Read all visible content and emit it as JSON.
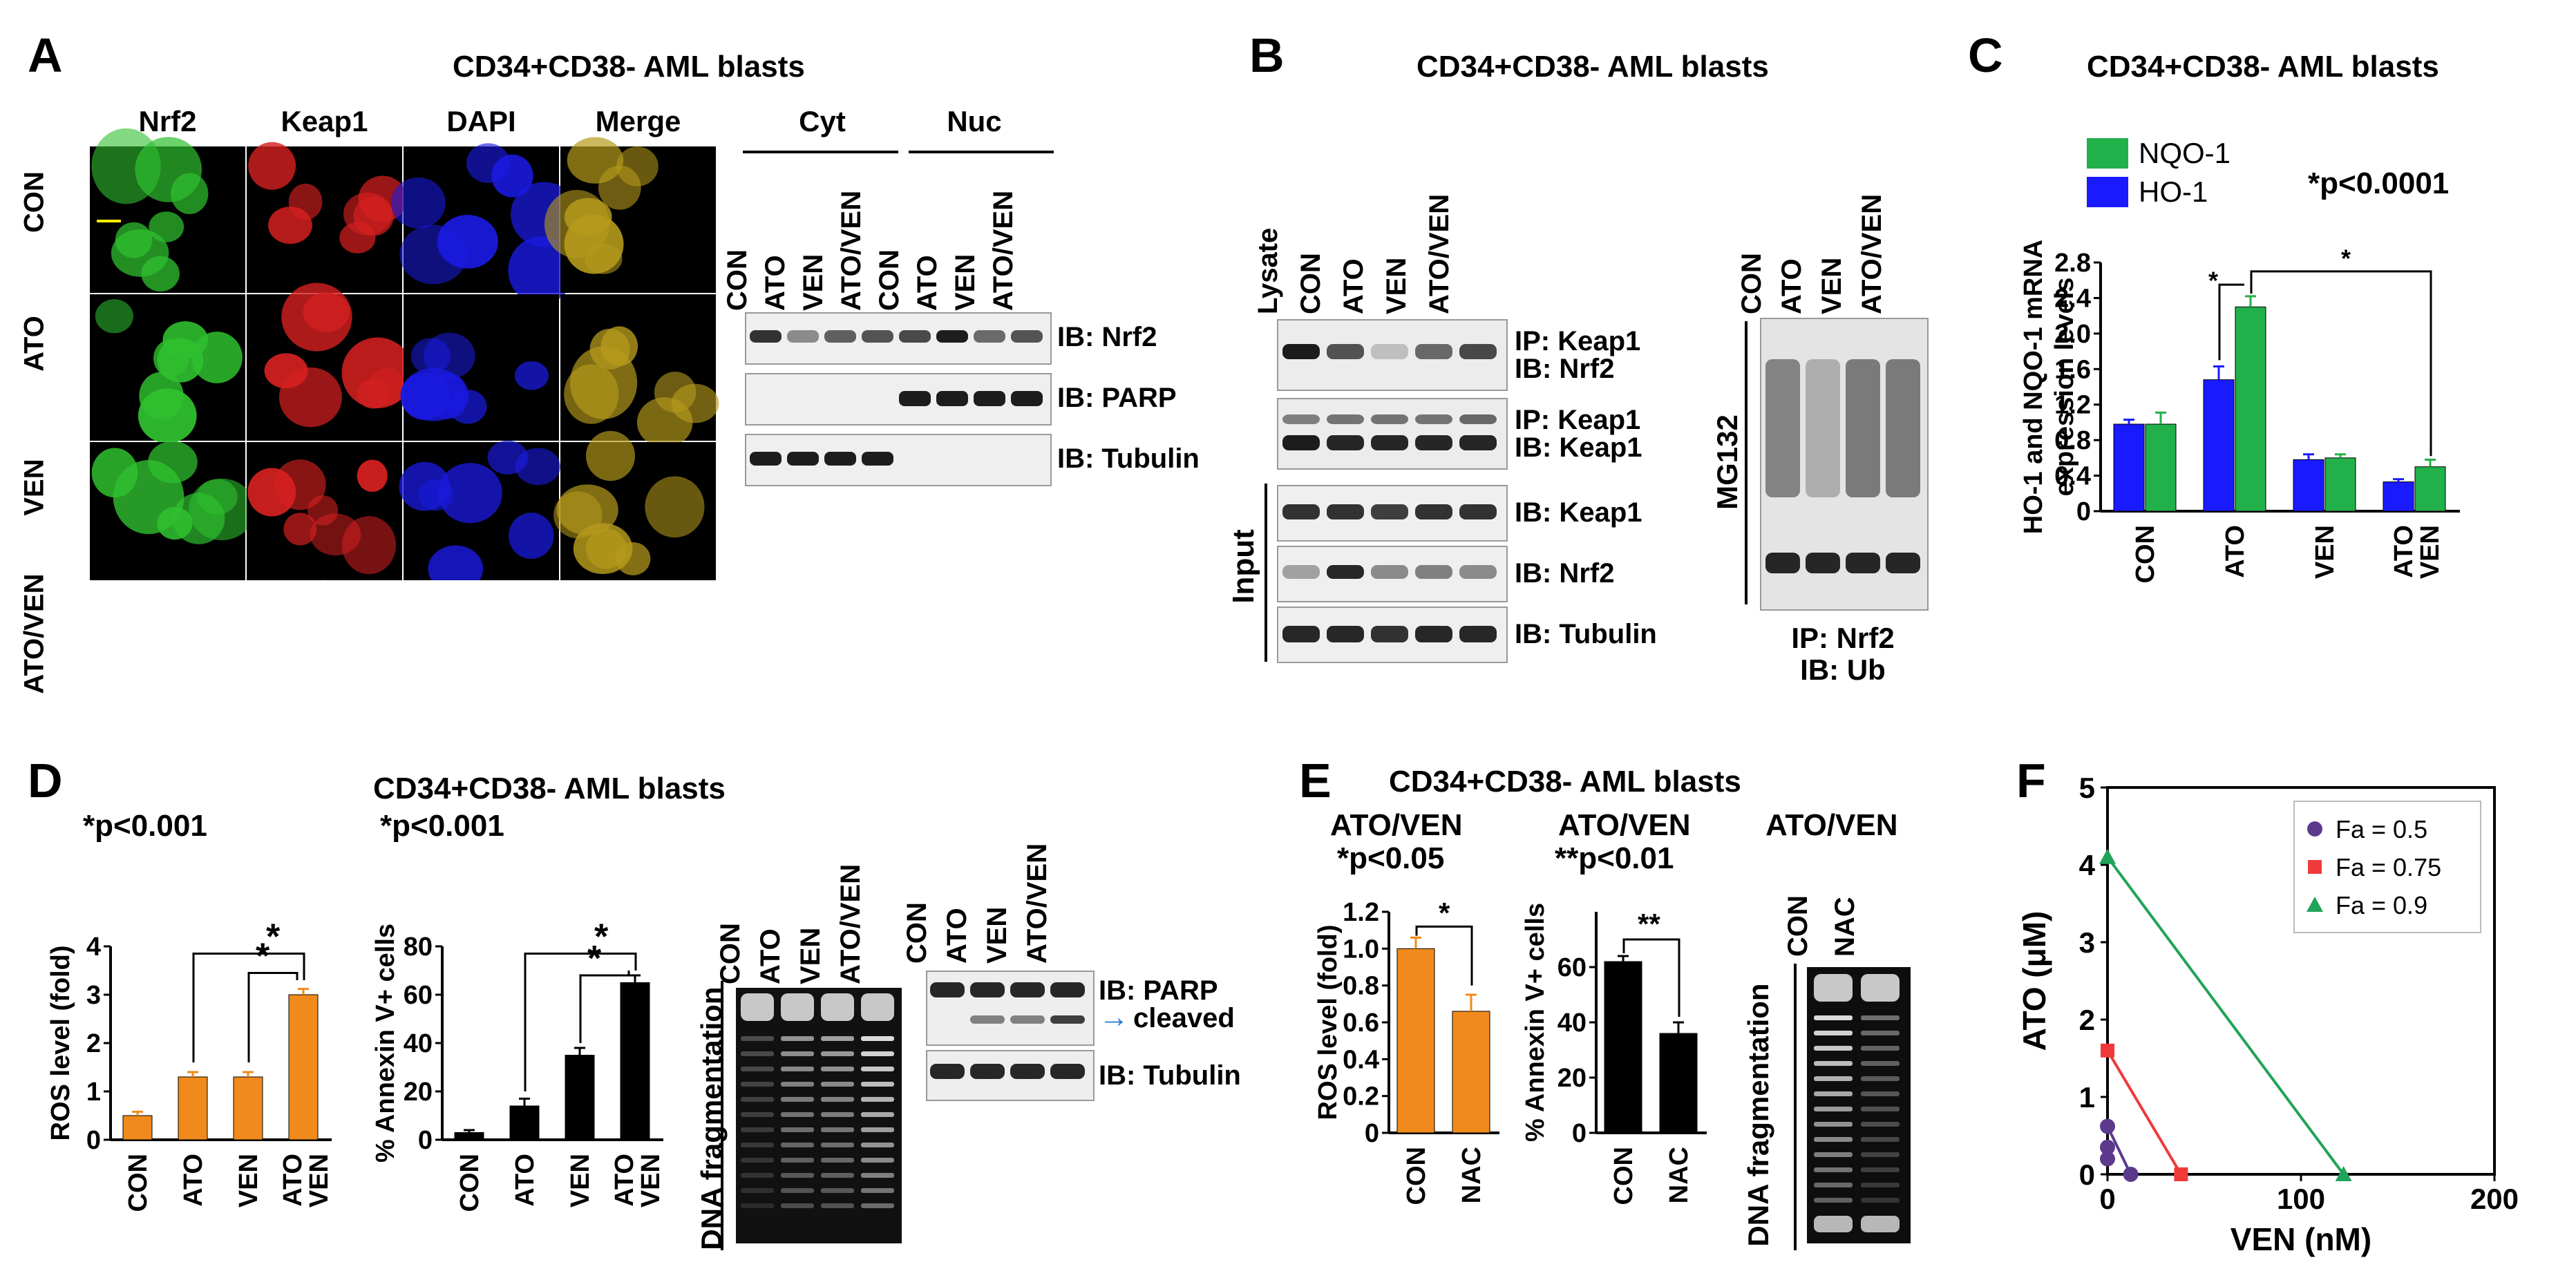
{
  "panels": {
    "A": {
      "letter": "A",
      "title": "CD34+CD38- AML blasts",
      "columns": [
        "Nrf2",
        "Keap1",
        "DAPI",
        "Merge"
      ],
      "rows": [
        "CON",
        "ATO",
        "VEN",
        "ATO/VEN"
      ],
      "channel_colors": [
        "#2fbf2f",
        "#d42020",
        "#1a1ae0",
        "#b59a1c"
      ],
      "blot": {
        "groups": [
          "Cyt",
          "Nuc"
        ],
        "lanes": [
          "CON",
          "ATO",
          "VEN",
          "ATO/VEN",
          "CON",
          "ATO",
          "VEN",
          "ATO/VEN"
        ],
        "rows": [
          "IB: Nrf2",
          "IB: PARP",
          "IB: Tubulin"
        ]
      }
    },
    "B": {
      "letter": "B",
      "title": "CD34+CD38- AML blasts",
      "lanes": [
        "Lysate",
        "CON",
        "ATO",
        "VEN",
        "ATO/VEN"
      ],
      "ip_rows": [
        {
          "l1": "IP: Keap1",
          "l2": "IB: Nrf2"
        },
        {
          "l1": "IP: Keap1",
          "l2": "IB: Keap1"
        }
      ],
      "input_label": "Input",
      "input_rows": [
        "IB: Keap1",
        "IB: Nrf2",
        "IB: Tubulin"
      ],
      "ub_lanes": [
        "CON",
        "ATO",
        "VEN",
        "ATO/VEN"
      ],
      "ub_side": "MG132",
      "ub_caption": [
        "IP: Nrf2",
        "IB: Ub"
      ]
    },
    "C": {
      "letter": "C",
      "title": "CD34+CD38- AML blasts",
      "pvalue": "*p<0.0001",
      "star": "*"
    },
    "D": {
      "letter": "D",
      "subtitle": "CD34+CD38- AML blasts",
      "ros_p": "*p<0.001",
      "annexin_p": "*p<0.001",
      "star": "*",
      "dna_lanes": [
        "CON",
        "ATO",
        "VEN",
        "ATO/VEN"
      ],
      "dna_label": "DNA fragmentation",
      "parp_lanes": [
        "CON",
        "ATO",
        "VEN",
        "ATO/VEN"
      ],
      "parp_rows": [
        "IB: PARP",
        "cleaved",
        "IB: Tubulin"
      ],
      "arrow": "→"
    },
    "E": {
      "letter": "E",
      "title": "CD34+CD38- AML blasts",
      "sub1": "ATO/VEN",
      "p1": "*p<0.05",
      "sub2": "ATO/VEN",
      "p2": "**p<0.01",
      "sub3": "ATO/VEN",
      "star1": "*",
      "star2": "**",
      "dna_lanes": [
        "CON",
        "NAC"
      ],
      "dna_label": "DNA fragmentation"
    },
    "F": {
      "letter": "F"
    }
  },
  "chart_data": [
    {
      "id": "C",
      "type": "bar",
      "categories": [
        "CON",
        "ATO",
        "VEN",
        "ATO VEN"
      ],
      "series": [
        {
          "name": "HO-1",
          "color": "#1a1aff",
          "values": [
            0.98,
            1.48,
            0.58,
            0.33
          ],
          "errors": [
            0.05,
            0.15,
            0.06,
            0.03
          ]
        },
        {
          "name": "NQO-1",
          "color": "#22b04a",
          "values": [
            0.98,
            2.3,
            0.6,
            0.5
          ],
          "errors": [
            0.13,
            0.12,
            0.04,
            0.08
          ]
        }
      ],
      "ylabel": "HO-1 and NQO-1 mRNA expression levels",
      "ylim": [
        0,
        2.8
      ],
      "yticks": [
        "0",
        "0.4",
        "0.8",
        "1.2",
        "1.6",
        "2.0",
        "2.4",
        "2.8"
      ],
      "legend": "top-left"
    },
    {
      "id": "D-ros",
      "type": "bar",
      "categories": [
        "CON",
        "ATO",
        "VEN",
        "ATO VEN"
      ],
      "series": [
        {
          "color": "#f08a1c",
          "values": [
            0.5,
            1.3,
            1.3,
            3.0
          ],
          "errors": [
            0.08,
            0.1,
            0.1,
            0.12
          ]
        }
      ],
      "ylabel": "ROS level (fold)",
      "ylim": [
        0,
        4
      ],
      "yticks": [
        "0",
        "1",
        "2",
        "3",
        "4"
      ]
    },
    {
      "id": "D-annexin",
      "type": "bar",
      "categories": [
        "CON",
        "ATO",
        "VEN",
        "ATO VEN"
      ],
      "series": [
        {
          "color": "#000000",
          "values": [
            3,
            14,
            35,
            65
          ],
          "errors": [
            1,
            3,
            3,
            3
          ]
        }
      ],
      "ylabel": "% Annexin V+ cells",
      "ylim": [
        0,
        80
      ],
      "yticks": [
        "0",
        "20",
        "40",
        "60",
        "80"
      ]
    },
    {
      "id": "E-ros",
      "type": "bar",
      "categories": [
        "CON",
        "NAC"
      ],
      "series": [
        {
          "color": "#f08a1c",
          "values": [
            1.0,
            0.66
          ],
          "errors": [
            0.06,
            0.09
          ]
        }
      ],
      "ylabel": "ROS level (fold)",
      "ylim": [
        0,
        1.2
      ],
      "yticks": [
        "0",
        "0.2",
        "0.4",
        "0.6",
        "0.8",
        "1.0",
        "1.2"
      ]
    },
    {
      "id": "E-annexin",
      "type": "bar",
      "categories": [
        "CON",
        "NAC"
      ],
      "series": [
        {
          "color": "#000000",
          "values": [
            62,
            36
          ],
          "errors": [
            2,
            4
          ]
        }
      ],
      "ylabel": "% Annexin V+ cells",
      "ylim": [
        0,
        80
      ],
      "yticks": [
        "0",
        "20",
        "40",
        "60"
      ]
    },
    {
      "id": "F",
      "type": "line",
      "xlabel": "VEN (nM)",
      "ylabel": "ATO (μM)",
      "xlim": [
        0,
        200
      ],
      "ylim": [
        0,
        5
      ],
      "xticks": [
        "0",
        "100",
        "200"
      ],
      "yticks": [
        "0",
        "1",
        "2",
        "3",
        "4",
        "5"
      ],
      "legend": "top-right",
      "series": [
        {
          "name": "Fa = 0.5",
          "color": "#5b3a8c",
          "marker": "circle",
          "points": [
            [
              0,
              0.62
            ],
            [
              12,
              0
            ]
          ],
          "extra": [
            [
              0,
              0.35
            ],
            [
              0,
              0.2
            ]
          ]
        },
        {
          "name": "Fa = 0.75",
          "color": "#f03a3a",
          "marker": "square",
          "points": [
            [
              0,
              1.6
            ],
            [
              38,
              0
            ]
          ]
        },
        {
          "name": "Fa = 0.9",
          "color": "#21a35a",
          "marker": "triangle",
          "points": [
            [
              0,
              4.1
            ],
            [
              122,
              0
            ]
          ]
        }
      ]
    }
  ]
}
